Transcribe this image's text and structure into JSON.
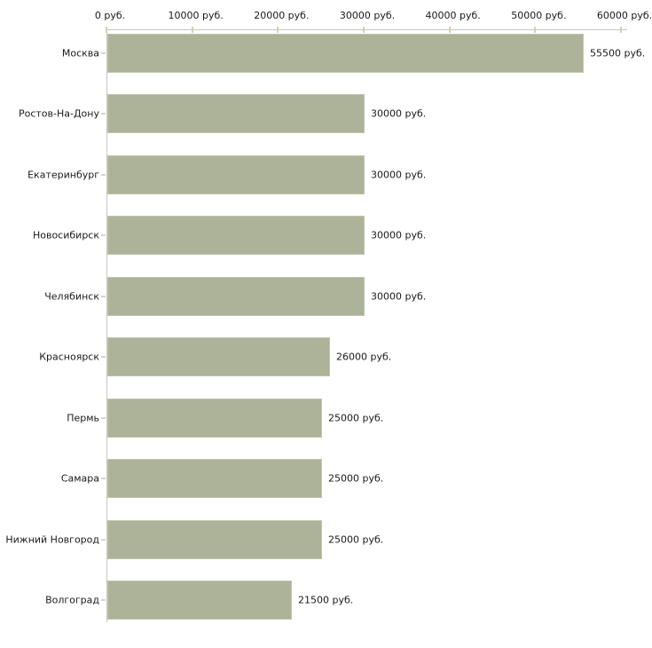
{
  "chart_data": {
    "type": "bar",
    "orientation": "horizontal",
    "title": "",
    "xlabel": "",
    "ylabel": "",
    "unit": "руб.",
    "categories": [
      "Москва",
      "Ростов-На-Дону",
      "Екатеринбург",
      "Новосибирск",
      "Челябинск",
      "Красноярск",
      "Пермь",
      "Самара",
      "Нижний Новгород",
      "Волгоград"
    ],
    "values": [
      55500,
      30000,
      30000,
      30000,
      30000,
      26000,
      25000,
      25000,
      25000,
      21500
    ],
    "value_labels": [
      "55500 руб.",
      "30000 руб.",
      "30000 руб.",
      "30000 руб.",
      "30000 руб.",
      "26000 руб.",
      "25000 руб.",
      "25000 руб.",
      "25000 руб.",
      "21500 руб."
    ],
    "x_ticks": [
      0,
      10000,
      20000,
      30000,
      40000,
      50000,
      60000
    ],
    "x_tick_labels": [
      "0 руб.",
      "10000 руб.",
      "20000 руб.",
      "30000 руб.",
      "40000 руб.",
      "50000 руб.",
      "60000 руб."
    ],
    "xlim": [
      0,
      60000
    ],
    "axis_position": "top",
    "grid": false,
    "legend": null,
    "colors": {
      "bar_fill": "#adb399",
      "bar_edge": "#c2c6ad",
      "axis_line": "#c6c6c6",
      "x_tick_mark": "#d6d0ae",
      "category_tick_mark": "#ddd3c6",
      "text": "#1a1a1a"
    }
  }
}
